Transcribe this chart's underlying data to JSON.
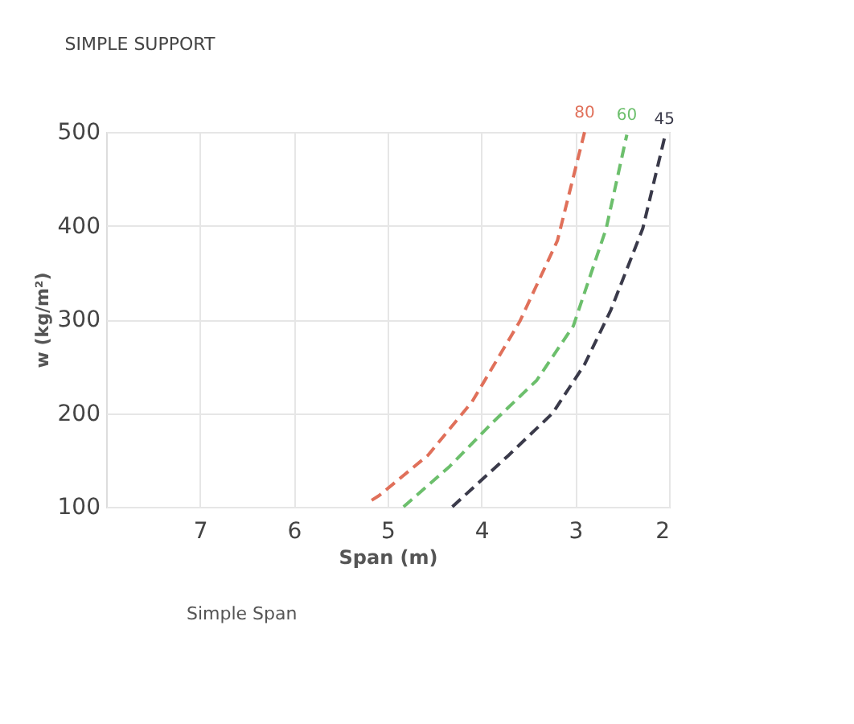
{
  "chart_data": {
    "type": "line",
    "title": "SIMPLE SUPPORT",
    "xlabel": "Span (m)",
    "ylabel": "w (kg/m²)",
    "xlim": [
      8,
      2
    ],
    "xticks": [
      7,
      6,
      5,
      4,
      3,
      2
    ],
    "ylim": [
      100,
      500
    ],
    "yticks": [
      100,
      200,
      300,
      400,
      500
    ],
    "grid": true,
    "line_style": "dashed",
    "marker": "none",
    "annotations": [
      "Simple Span"
    ],
    "series": [
      {
        "name": "80",
        "color": "#e0705a",
        "x": [
          5.17,
          5.09,
          4.57,
          4.1,
          3.59,
          3.19,
          2.9
        ],
        "values": [
          107,
          112,
          155,
          212,
          298,
          384,
          500
        ]
      },
      {
        "name": "60",
        "color": "#6cbf6c",
        "x": [
          4.83,
          4.34,
          3.88,
          3.41,
          3.02,
          2.67,
          2.45
        ],
        "values": [
          100,
          143,
          190,
          235,
          293,
          397,
          497
        ]
      },
      {
        "name": "45",
        "color": "#3a3a4a",
        "x": [
          4.31,
          3.71,
          3.24,
          2.9,
          2.62,
          2.28,
          2.05
        ],
        "values": [
          100,
          155,
          200,
          252,
          310,
          397,
          493
        ]
      }
    ]
  }
}
